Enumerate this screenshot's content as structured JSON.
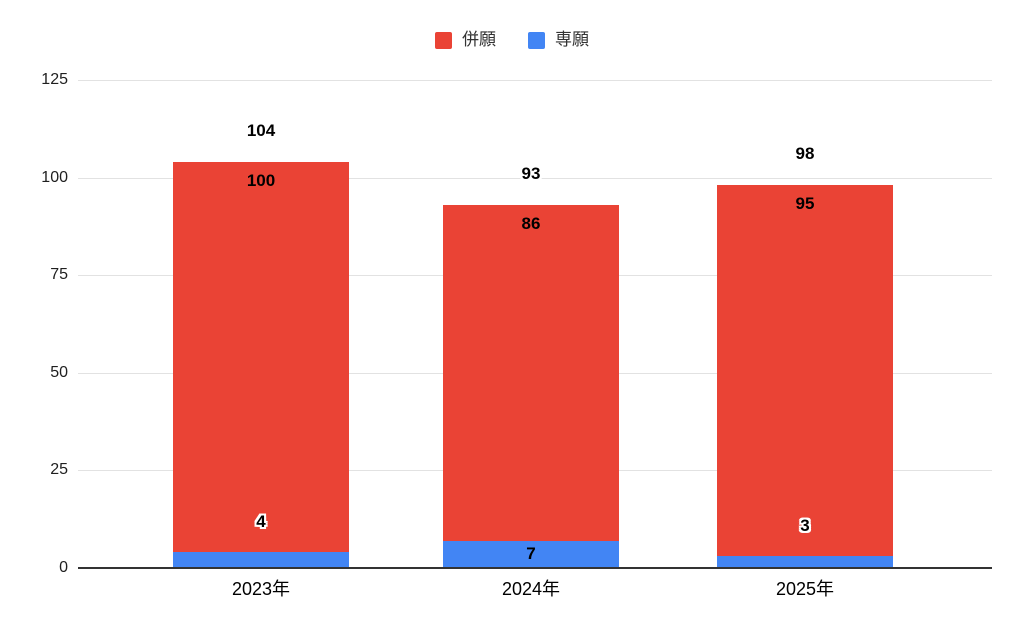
{
  "chart_data": {
    "type": "bar",
    "stacked": true,
    "title": "",
    "xlabel": "",
    "ylabel": "",
    "categories": [
      "2023年",
      "2024年",
      "2025年"
    ],
    "series": [
      {
        "name": "併願",
        "color": "#EA4335",
        "values": [
          100,
          86,
          95
        ]
      },
      {
        "name": "専願",
        "color": "#4285F4",
        "values": [
          4,
          7,
          3
        ]
      }
    ],
    "totals": [
      104,
      93,
      98
    ],
    "ylim": [
      0,
      125
    ],
    "yticks": [
      0,
      25,
      50,
      75,
      100,
      125
    ],
    "grid": true,
    "legend_position": "top",
    "colors": {
      "grid": "#e2e2e2",
      "axis": "#333333",
      "tick_text": "#1f1f1f",
      "legend_text": "#333333",
      "value_text": "#000000"
    }
  }
}
